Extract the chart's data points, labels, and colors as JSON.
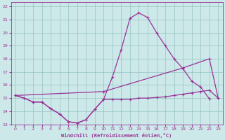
{
  "xlabel": "Windchill (Refroidissement éolien,°C)",
  "xlim": [
    -0.5,
    23.5
  ],
  "ylim": [
    13,
    22.3
  ],
  "yticks": [
    13,
    14,
    15,
    16,
    17,
    18,
    19,
    20,
    21,
    22
  ],
  "xticks": [
    0,
    1,
    2,
    3,
    4,
    5,
    6,
    7,
    8,
    9,
    10,
    11,
    12,
    13,
    14,
    15,
    16,
    17,
    18,
    19,
    20,
    21,
    22,
    23
  ],
  "bg_color": "#cce8e8",
  "line_color": "#993399",
  "line1_x": [
    0,
    1,
    2,
    3,
    4,
    5,
    6,
    7,
    8,
    9,
    10,
    11,
    12,
    13,
    14,
    15,
    16,
    17,
    18,
    19,
    20,
    21,
    22
  ],
  "line1_y": [
    15.2,
    15.0,
    14.7,
    14.7,
    14.2,
    13.8,
    13.2,
    13.1,
    13.35,
    14.15,
    14.9,
    16.6,
    18.7,
    21.1,
    21.5,
    21.15,
    20.0,
    19.0,
    18.0,
    17.25,
    16.3,
    15.85,
    14.95
  ],
  "line2_x": [
    0,
    1,
    2,
    3,
    4,
    5,
    6,
    7,
    8,
    9,
    10,
    11,
    12,
    13,
    14,
    15,
    16,
    17,
    18,
    19,
    20,
    21,
    22,
    23
  ],
  "line2_y": [
    15.2,
    15.0,
    14.7,
    14.7,
    14.2,
    13.8,
    13.2,
    13.1,
    13.35,
    14.15,
    14.9,
    14.9,
    14.9,
    14.9,
    15.0,
    15.0,
    15.05,
    15.1,
    15.2,
    15.3,
    15.4,
    15.5,
    15.6,
    15.0
  ],
  "line3_x": [
    0,
    10,
    19,
    22,
    23
  ],
  "line3_y": [
    15.2,
    15.5,
    17.3,
    18.0,
    15.0
  ]
}
